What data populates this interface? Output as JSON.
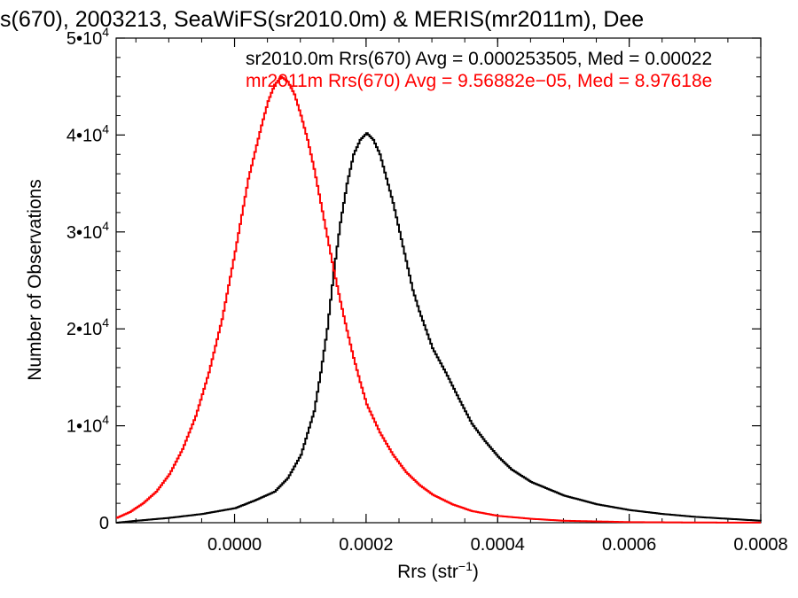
{
  "chart_data": {
    "type": "line",
    "title": "s(670), 2003213, SeaWiFS(sr2010.0m) & MERIS(mr2011m), Dee",
    "xlabel": "Rrs (str",
    "xlabel_sup": "−1",
    "xlabel_close": ")",
    "ylabel": "Number of Observations",
    "xlim": [
      -0.00018,
      0.0008
    ],
    "ylim": [
      0,
      50000
    ],
    "x_ticks": [
      0.0,
      0.0002,
      0.0004,
      0.0006,
      0.0008
    ],
    "x_tick_labels": [
      "0.0000",
      "0.0002",
      "0.0004",
      "0.0006",
      "0.0008"
    ],
    "y_ticks": [
      0,
      10000,
      20000,
      30000,
      40000,
      50000
    ],
    "y_tick_labels": [
      {
        "base": "0",
        "exp": ""
      },
      {
        "base": "1•10",
        "exp": "4"
      },
      {
        "base": "2•10",
        "exp": "4"
      },
      {
        "base": "3•10",
        "exp": "4"
      },
      {
        "base": "4•10",
        "exp": "4"
      },
      {
        "base": "5•10",
        "exp": "4"
      }
    ],
    "legend_entries": [
      {
        "text": "sr2010.0m Rrs(670) Avg = 0.000253505, Med = 0.00022",
        "color": "#000000"
      },
      {
        "text": "mr2011m Rrs(670) Avg = 9.56882e−05, Med = 8.97618e",
        "color": "#ff0000"
      }
    ],
    "legend_placement": "top-right",
    "grid": false,
    "series": [
      {
        "color": "#000000",
        "x": [
          -0.00018,
          -0.00015,
          -0.0001,
          -5e-05,
          0.0,
          3e-05,
          6e-05,
          8e-05,
          0.0001,
          0.00012,
          0.00013,
          0.00014,
          0.00015,
          0.00016,
          0.00017,
          0.00018,
          0.00019,
          0.0002,
          0.00021,
          0.00022,
          0.00023,
          0.00024,
          0.00025,
          0.00026,
          0.00027,
          0.00028,
          0.0003,
          0.00032,
          0.00034,
          0.00036,
          0.00038,
          0.0004,
          0.00042,
          0.00045,
          0.0005,
          0.00055,
          0.0006,
          0.00065,
          0.0007,
          0.00075,
          0.0008
        ],
        "y": [
          0,
          200,
          500,
          900,
          1500,
          2300,
          3200,
          4600,
          7000,
          11500,
          15500,
          20000,
          26000,
          31000,
          35000,
          38000,
          39500,
          40200,
          39500,
          38000,
          35500,
          33000,
          30000,
          27000,
          24000,
          21800,
          18000,
          15500,
          12800,
          10200,
          8400,
          6800,
          5500,
          4200,
          2800,
          1900,
          1300,
          900,
          600,
          400,
          200
        ]
      },
      {
        "color": "#ff0000",
        "x": [
          -0.00018,
          -0.00016,
          -0.00014,
          -0.00012,
          -0.0001,
          -8e-05,
          -6e-05,
          -4e-05,
          -2e-05,
          0.0,
          2e-05,
          4e-05,
          5e-05,
          6e-05,
          7e-05,
          8e-05,
          9e-05,
          0.0001,
          0.00011,
          0.00012,
          0.00013,
          0.00014,
          0.00015,
          0.00016,
          0.00017,
          0.00018,
          0.00019,
          0.0002,
          0.00022,
          0.00024,
          0.00026,
          0.00028,
          0.0003,
          0.00033,
          0.00036,
          0.0004,
          0.00045,
          0.0005,
          0.0006,
          0.0007,
          0.0008
        ],
        "y": [
          500,
          1100,
          2000,
          3200,
          5000,
          7600,
          11000,
          15500,
          21000,
          28000,
          35500,
          41000,
          43500,
          45200,
          46000,
          45500,
          44200,
          42000,
          39500,
          36500,
          33000,
          29500,
          26000,
          22800,
          19800,
          17000,
          14500,
          12200,
          9300,
          7000,
          5200,
          3900,
          2900,
          1900,
          1200,
          700,
          400,
          200,
          60,
          20,
          10
        ]
      }
    ]
  }
}
